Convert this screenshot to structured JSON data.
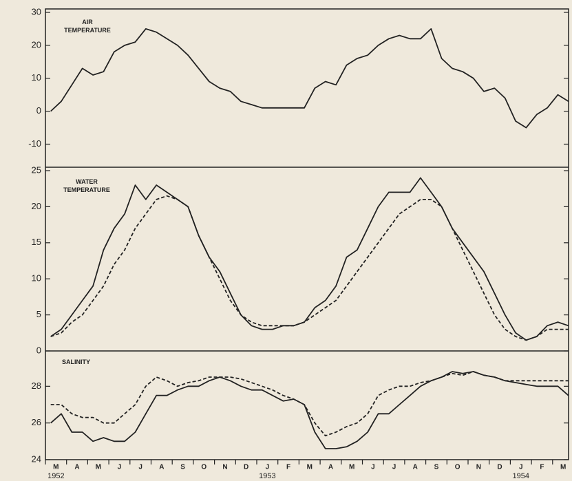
{
  "chart_data": [
    {
      "type": "line",
      "title": "AIR TEMPERATURE",
      "ylim": [
        -17,
        30
      ],
      "yticks": [
        30,
        20,
        10,
        0,
        -10
      ],
      "color": "#222222",
      "values": [
        0,
        3,
        8,
        13,
        11,
        12,
        18,
        20,
        21,
        25,
        24,
        22,
        20,
        17,
        13,
        9,
        7,
        6,
        3,
        2,
        1,
        1,
        1,
        1,
        1,
        7,
        9,
        8,
        14,
        16,
        17,
        20,
        22,
        23,
        22,
        22,
        25,
        16,
        13,
        12,
        10,
        6,
        7,
        4,
        -3,
        -5,
        -1,
        1,
        5,
        3
      ]
    },
    {
      "type": "line",
      "title": "WATER TEMPERATURE",
      "ylim": [
        0,
        25
      ],
      "yticks": [
        25,
        20,
        15,
        10,
        5,
        0
      ],
      "series": [
        {
          "color": "#222222",
          "dash": false,
          "values": [
            2,
            3,
            5,
            7,
            9,
            14,
            17,
            19,
            23,
            21,
            23,
            22,
            21,
            20,
            16,
            13,
            11,
            8,
            5,
            3.5,
            3,
            3,
            3.5,
            3.5,
            4,
            6,
            7,
            9,
            13,
            14,
            17,
            20,
            22,
            22,
            22,
            24,
            22,
            20,
            17,
            15,
            13,
            11,
            8,
            5,
            2.5,
            1.5,
            2,
            3.5,
            4,
            3.5
          ]
        },
        {
          "color": "#222222",
          "dash": true,
          "values": [
            2,
            2.5,
            4,
            5,
            7,
            9,
            12,
            14,
            17,
            19,
            21,
            21.5,
            21,
            20,
            16,
            13,
            10,
            7,
            5,
            4,
            3.5,
            3.5,
            3.5,
            3.5,
            4,
            5,
            6,
            7,
            9,
            11,
            13,
            15,
            17,
            19,
            20,
            21,
            21,
            20,
            17,
            14,
            11,
            8,
            5,
            3,
            2,
            1.5,
            2,
            3,
            3,
            3
          ]
        }
      ]
    },
    {
      "type": "line",
      "title": "SALINITY",
      "ylim": [
        24,
        30
      ],
      "yticks": [
        28,
        26,
        24
      ],
      "categories": [
        "M",
        null,
        "A",
        null,
        "M",
        null,
        "J",
        null,
        "J",
        null,
        "A",
        null,
        "S",
        null,
        "O",
        null,
        "N",
        null,
        "D",
        null,
        "J",
        null,
        "F",
        null,
        "M",
        null,
        "A",
        null,
        "M",
        null,
        "J",
        null,
        "J",
        null,
        "A",
        null,
        "S",
        null,
        "O",
        null,
        "N",
        null,
        "D",
        null,
        "J",
        null,
        "F",
        null,
        "M",
        null
      ],
      "years": [
        "1952",
        null,
        null,
        null,
        null,
        null,
        null,
        null,
        null,
        null,
        null,
        null,
        null,
        null,
        null,
        null,
        null,
        null,
        null,
        null,
        "1953",
        null,
        null,
        null,
        null,
        null,
        null,
        null,
        null,
        null,
        null,
        null,
        null,
        null,
        null,
        null,
        null,
        null,
        null,
        null,
        null,
        null,
        null,
        null,
        "1954",
        null,
        null,
        null,
        null,
        null
      ],
      "series": [
        {
          "color": "#222222",
          "dash": false,
          "values": [
            26,
            26.5,
            25.5,
            25.5,
            25,
            25.2,
            25,
            25,
            25.5,
            26.5,
            27.5,
            27.5,
            27.8,
            28,
            28,
            28.3,
            28.5,
            28.3,
            28,
            27.8,
            27.8,
            27.5,
            27.2,
            27.3,
            27,
            25.5,
            24.6,
            24.6,
            24.7,
            25,
            25.5,
            26.5,
            26.5,
            27,
            27.5,
            28,
            28.3,
            28.5,
            28.8,
            28.7,
            28.8,
            28.6,
            28.5,
            28.3,
            28.2,
            28.1,
            28,
            28,
            28,
            27.5
          ]
        },
        {
          "color": "#222222",
          "dash": true,
          "values": [
            27,
            27,
            26.5,
            26.3,
            26.3,
            26,
            26,
            26.5,
            27,
            28,
            28.5,
            28.3,
            28,
            28.2,
            28.3,
            28.5,
            28.5,
            28.5,
            28.4,
            28.2,
            28,
            27.8,
            27.5,
            27.3,
            27,
            26,
            25.3,
            25.5,
            25.8,
            26,
            26.5,
            27.5,
            27.8,
            28,
            28,
            28.2,
            28.3,
            28.5,
            28.7,
            28.6,
            28.8,
            28.6,
            28.5,
            28.3,
            28.3,
            28.3,
            28.3,
            28.3,
            28.3,
            28.3
          ]
        }
      ]
    }
  ]
}
